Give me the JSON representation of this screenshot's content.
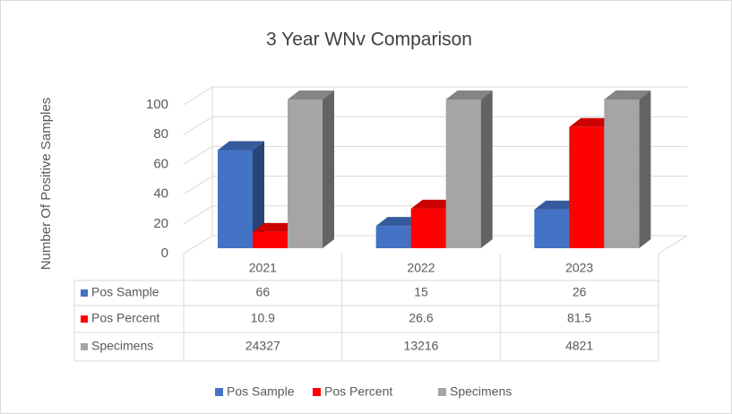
{
  "chart_data": {
    "type": "bar3d",
    "title": "3 Year WNv Comparison",
    "y_label": "Number Of Positive Samples",
    "categories": [
      "2021",
      "2022",
      "2023"
    ],
    "series": [
      {
        "name": "Pos Sample",
        "color": "#4472c4",
        "values": [
          66,
          15,
          26
        ]
      },
      {
        "name": "Pos Percent",
        "color": "#ff0000",
        "values": [
          10.9,
          26.6,
          81.5
        ]
      },
      {
        "name": "Specimens",
        "color": "#a5a5a5",
        "values": [
          24327,
          13216,
          4821
        ]
      }
    ],
    "ylim": [
      0,
      100
    ],
    "yticks": [
      0,
      20,
      40,
      60,
      80,
      100
    ],
    "grid": true,
    "legend": "bottom",
    "data_table": true
  }
}
